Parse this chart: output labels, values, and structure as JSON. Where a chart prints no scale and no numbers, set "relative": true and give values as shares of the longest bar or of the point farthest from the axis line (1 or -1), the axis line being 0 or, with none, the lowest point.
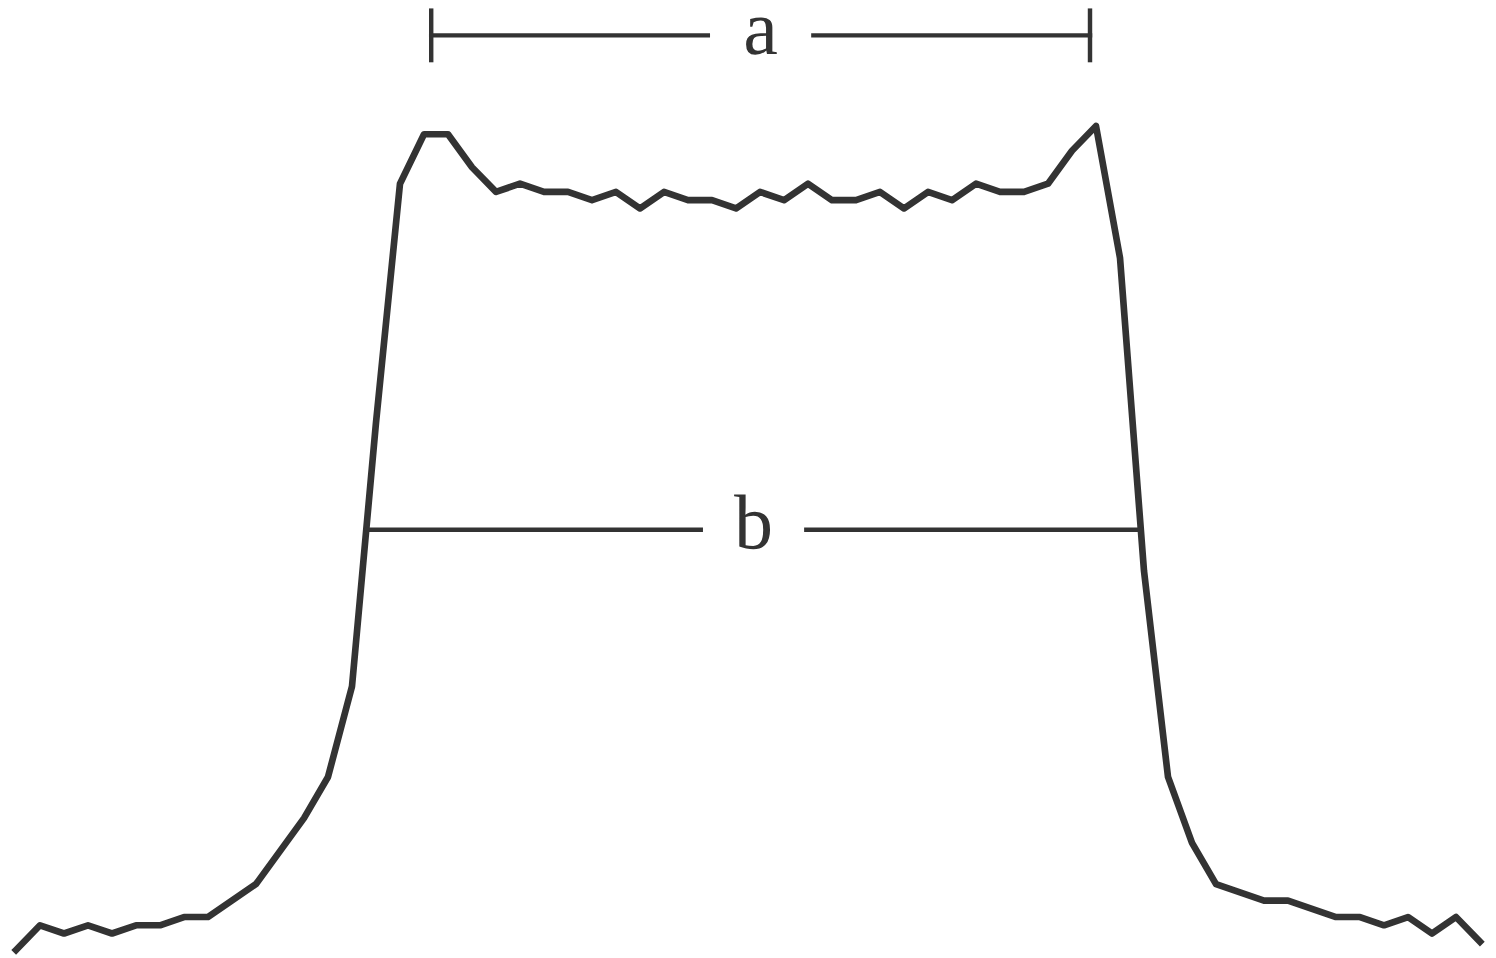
{
  "chart_data": {
    "type": "line",
    "relative": true,
    "marker": "none",
    "line_style": "solid",
    "categories": [
      null,
      null,
      null,
      null,
      null,
      null,
      null,
      null,
      null,
      null,
      null,
      null,
      null,
      null,
      null,
      null,
      null,
      null,
      null,
      null,
      null,
      null,
      null,
      null,
      null,
      null,
      null,
      null,
      null,
      null,
      null,
      null,
      null,
      null,
      null,
      null,
      null,
      null,
      null,
      null,
      null,
      null,
      null,
      null,
      null,
      null,
      null,
      null,
      null,
      null,
      null,
      null,
      null,
      null,
      null,
      null,
      null,
      null,
      null,
      null,
      null,
      null
    ],
    "series": [
      {
        "color": "#333333",
        "values": [
          0,
          0.03,
          0.02,
          0.03,
          0.02,
          0.03,
          0.03,
          0.04,
          0.04,
          0.06,
          0.08,
          0.12,
          0.16,
          0.21,
          0.32,
          0.64,
          0.93,
          0.99,
          0.99,
          0.95,
          0.92,
          0.93,
          0.92,
          0.92,
          0.91,
          0.92,
          0.9,
          0.92,
          0.91,
          0.91,
          0.9,
          0.92,
          0.91,
          0.93,
          0.91,
          0.91,
          0.92,
          0.9,
          0.92,
          0.91,
          0.93,
          0.92,
          0.92,
          0.93,
          0.97,
          1.0,
          0.84,
          0.46,
          0.21,
          0.13,
          0.08,
          0.07,
          0.06,
          0.06,
          0.05,
          0.04,
          0.04,
          0.03,
          0.04,
          0.02,
          0.04,
          0.01
        ]
      }
    ],
    "annotations": [
      "a",
      "b"
    ]
  }
}
